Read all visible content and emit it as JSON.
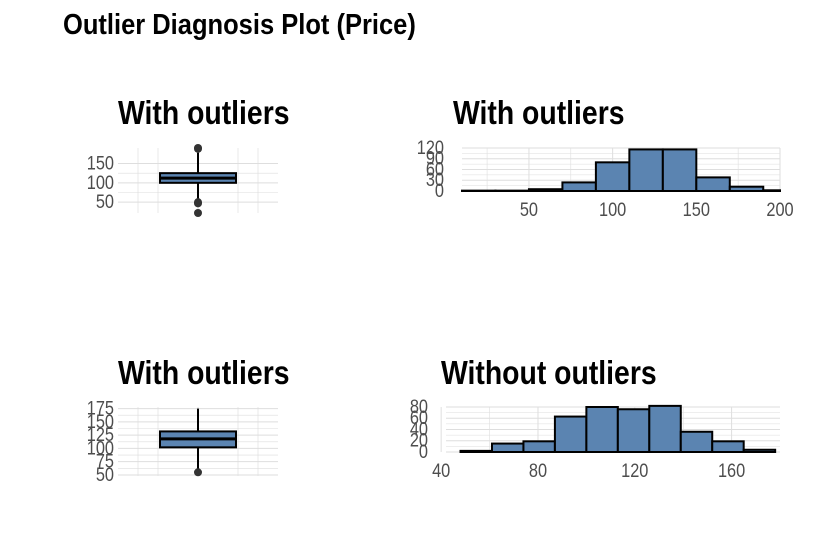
{
  "page_title": "Outlier Diagnosis Plot (Price)",
  "colors": {
    "fill": "#5b84b1",
    "stroke": "#000000",
    "grid": "#dedede",
    "tick_text": "#4d4d4d",
    "point": "#333333"
  },
  "chart_data": [
    {
      "type": "box",
      "title": "With outliers",
      "orientation": "vertical",
      "ylim": [
        22,
        190
      ],
      "yticks": [
        50,
        100,
        150
      ],
      "ytick_labels": [
        "50",
        "100",
        "150"
      ],
      "stats": {
        "whisker_low": 52,
        "q1": 100,
        "median": 112,
        "q3": 125,
        "whisker_high": 178
      },
      "outliers": [
        190,
        188,
        50,
        47,
        22
      ],
      "xlabel": "",
      "ylabel": ""
    },
    {
      "type": "bar",
      "title": "With outliers",
      "subtype": "histogram",
      "xlim": [
        10,
        200
      ],
      "ylim": [
        0,
        120
      ],
      "xticks": [
        50,
        100,
        150,
        200
      ],
      "xtick_labels": [
        "50",
        "100",
        "150",
        "200"
      ],
      "yticks": [
        0,
        30,
        60,
        90,
        120
      ],
      "ytick_labels": [
        "0",
        "30",
        "60",
        "90",
        "120"
      ],
      "bins": [
        {
          "x0": 10,
          "x1": 30,
          "value": 1
        },
        {
          "x0": 30,
          "x1": 50,
          "value": 1
        },
        {
          "x0": 50,
          "x1": 70,
          "value": 5
        },
        {
          "x0": 70,
          "x1": 90,
          "value": 24
        },
        {
          "x0": 90,
          "x1": 110,
          "value": 80
        },
        {
          "x0": 110,
          "x1": 130,
          "value": 116
        },
        {
          "x0": 130,
          "x1": 150,
          "value": 116
        },
        {
          "x0": 150,
          "x1": 170,
          "value": 38
        },
        {
          "x0": 170,
          "x1": 190,
          "value": 12
        },
        {
          "x0": 190,
          "x1": 210,
          "value": 2
        }
      ],
      "xlabel": "",
      "ylabel": ""
    },
    {
      "type": "box",
      "title": "With outliers",
      "orientation": "vertical",
      "ylim": [
        48,
        178
      ],
      "yticks": [
        50,
        75,
        100,
        125,
        150,
        175
      ],
      "ytick_labels": [
        "50",
        "75",
        "100",
        "125",
        "150",
        "175"
      ],
      "stats": {
        "whisker_low": 57,
        "q1": 102,
        "median": 118,
        "q3": 132,
        "whisker_high": 175
      },
      "outliers": [
        55
      ],
      "xlabel": "",
      "ylabel": ""
    },
    {
      "type": "bar",
      "title": "Without outliers",
      "subtype": "histogram",
      "xlim": [
        42,
        180
      ],
      "ylim": [
        0,
        80
      ],
      "xticks": [
        40,
        80,
        120,
        160
      ],
      "xtick_labels": [
        "40",
        "80",
        "120",
        "160"
      ],
      "yticks": [
        0,
        20,
        40,
        60,
        80
      ],
      "ytick_labels": [
        "0",
        "20",
        "40",
        "60",
        "80"
      ],
      "bins": [
        {
          "x0": 48,
          "x1": 61,
          "value": 2
        },
        {
          "x0": 61,
          "x1": 74,
          "value": 15
        },
        {
          "x0": 74,
          "x1": 87,
          "value": 19
        },
        {
          "x0": 87,
          "x1": 100,
          "value": 63
        },
        {
          "x0": 100,
          "x1": 113,
          "value": 80
        },
        {
          "x0": 113,
          "x1": 126,
          "value": 76
        },
        {
          "x0": 126,
          "x1": 139,
          "value": 82
        },
        {
          "x0": 139,
          "x1": 152,
          "value": 36
        },
        {
          "x0": 152,
          "x1": 165,
          "value": 19
        },
        {
          "x0": 165,
          "x1": 178,
          "value": 4
        }
      ],
      "xlabel": "",
      "ylabel": ""
    }
  ]
}
